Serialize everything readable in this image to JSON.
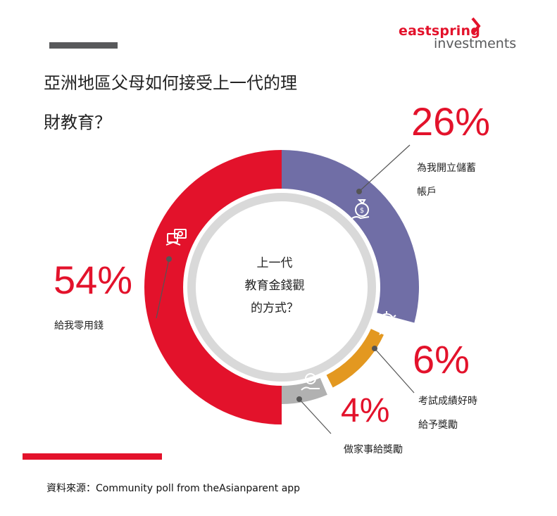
{
  "title": "亞洲地區父母如何接受上一代的理\n財教育？",
  "logo": {
    "line1": "eastspring",
    "line2": "investments",
    "brand_color": "#e3122b"
  },
  "center_text": "上一代\n教育金錢觀\n的方式？",
  "source": "資料來源：Community poll from theAsianparent app",
  "chart_data": {
    "type": "pie",
    "style": "donut",
    "slices": [
      {
        "label": "給我零用錢",
        "value": 54,
        "display": "54%",
        "color": "#e3122b",
        "icon": "money-hand-icon"
      },
      {
        "label": "為我開立儲蓄\n帳戶",
        "value": 26,
        "display": "26%",
        "color": "#706ea6",
        "icon": "money-bag-hand-icon"
      },
      {
        "label": "考試成績好時\n給予獎勵",
        "value": 6,
        "display": "6%",
        "color": "#e39820",
        "icon": "award-medal-icon"
      },
      {
        "label": "做家事給獎勵",
        "value": 4,
        "display": "4%",
        "color": "#b1b1b1",
        "icon": "coin-hand-icon"
      }
    ]
  }
}
